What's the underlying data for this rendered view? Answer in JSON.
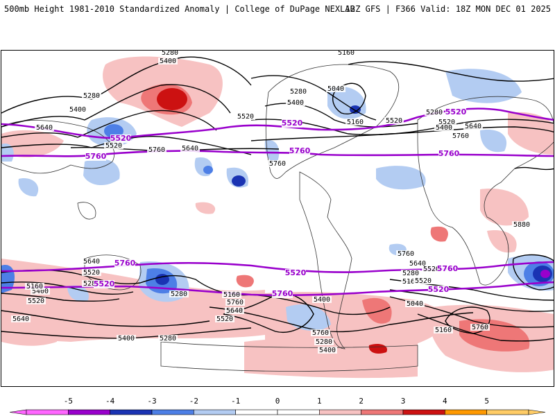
{
  "header": {
    "title_left": "500mb Height 1981-2010 Standardized Anomaly | College of DuPage NEXLAB",
    "title_right": "12Z GFS | F366 Valid: 18Z MON DEC 01 2025"
  },
  "colorbar": {
    "ticks": [
      "-5",
      "-4",
      "-3",
      "-2",
      "-1",
      "0",
      "1",
      "2",
      "3",
      "4",
      "5"
    ],
    "colors": [
      "#ff66ff",
      "#9900cc",
      "#1a33b3",
      "#4d7fe6",
      "#b3ccf2",
      "#ffffff",
      "#ffffff",
      "#f7c2c2",
      "#ee7777",
      "#cc1111",
      "#ff9900",
      "#ffcc66"
    ]
  },
  "contour_labels": {
    "black": [
      "5280",
      "5400",
      "5160",
      "5280",
      "5400",
      "5640",
      "5520",
      "5640",
      "5760",
      "5760",
      "5520",
      "5280",
      "5400",
      "5040",
      "5160",
      "5520",
      "5280",
      "5520",
      "5400",
      "5640",
      "5760",
      "5880",
      "5760",
      "5640",
      "5520",
      "5280",
      "5400",
      "5520",
      "5640",
      "5760",
      "5280",
      "5400",
      "5160",
      "5760",
      "5640",
      "5520",
      "5400",
      "5280",
      "5160",
      "5040",
      "5160",
      "5520",
      "5640",
      "5760",
      "5400",
      "5280",
      "5160",
      "5280",
      "5520"
    ],
    "purple": [
      "5520",
      "5760",
      "5520",
      "5760",
      "5520",
      "5760",
      "5760",
      "5520",
      "5760",
      "5520",
      "5760",
      "5520"
    ]
  }
}
